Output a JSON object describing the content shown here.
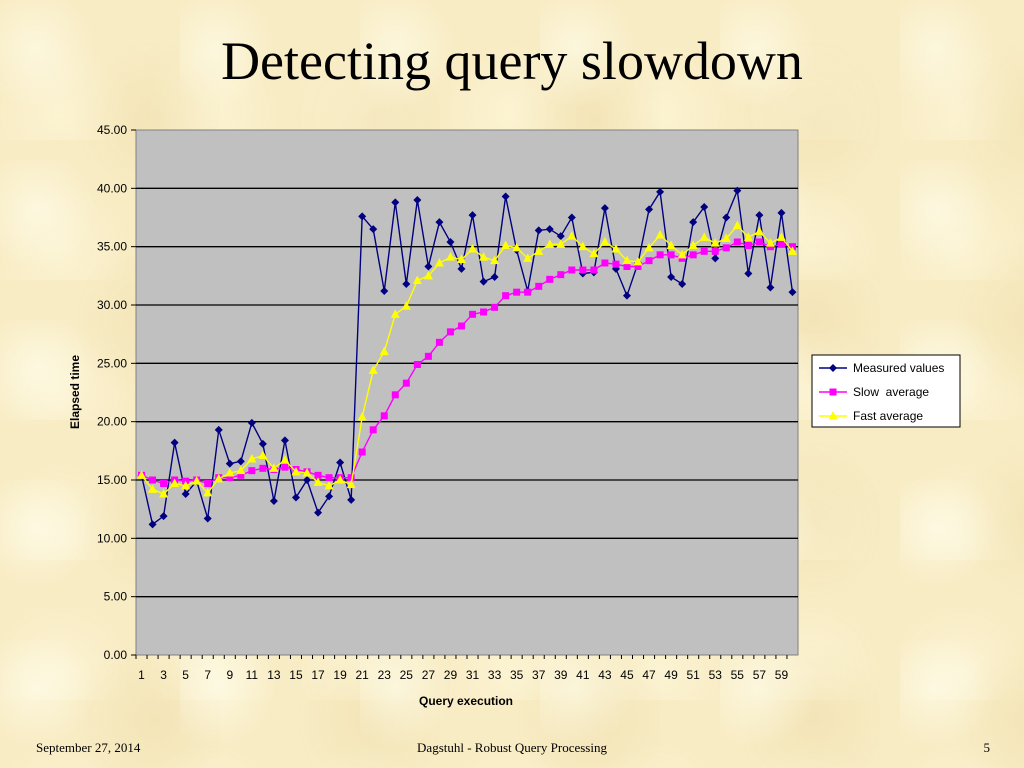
{
  "slide": {
    "title": "Detecting query slowdown",
    "footer_left": "September 27, 2014",
    "footer_center": "Dagstuhl - Robust Query Processing",
    "footer_right": "5"
  },
  "colors": {
    "plot_bg": "#c0c0c0",
    "measured": "#000080",
    "slow": "#ff00ff",
    "fast": "#ffff00"
  },
  "chart_data": {
    "type": "line",
    "title": "",
    "xlabel": "Query execution",
    "ylabel": "Elapsed time",
    "ylim": [
      0,
      45
    ],
    "yticks": [
      0,
      5,
      10,
      15,
      20,
      25,
      30,
      35,
      40,
      45
    ],
    "ytick_labels": [
      "0.00",
      "5.00",
      "10.00",
      "15.00",
      "20.00",
      "25.00",
      "30.00",
      "35.00",
      "40.00",
      "45.00"
    ],
    "x": [
      1,
      2,
      3,
      4,
      5,
      6,
      7,
      8,
      9,
      10,
      11,
      12,
      13,
      14,
      15,
      16,
      17,
      18,
      19,
      20,
      21,
      22,
      23,
      24,
      25,
      26,
      27,
      28,
      29,
      30,
      31,
      32,
      33,
      34,
      35,
      36,
      37,
      38,
      39,
      40,
      41,
      42,
      43,
      44,
      45,
      46,
      47,
      48,
      49,
      50,
      51,
      52,
      53,
      54,
      55,
      56,
      57,
      58,
      59,
      60
    ],
    "xtick_labels": [
      "1",
      "3",
      "5",
      "7",
      "9",
      "11",
      "13",
      "15",
      "17",
      "19",
      "21",
      "23",
      "25",
      "27",
      "29",
      "31",
      "33",
      "35",
      "37",
      "39",
      "41",
      "43",
      "45",
      "47",
      "49",
      "51",
      "53",
      "55",
      "57",
      "59"
    ],
    "grid": true,
    "legend_position": "right",
    "series": [
      {
        "name": "Measured values",
        "marker": "diamond",
        "values": [
          15.4,
          11.2,
          11.9,
          18.2,
          13.8,
          14.9,
          11.7,
          19.3,
          16.4,
          16.6,
          19.9,
          18.1,
          13.2,
          18.4,
          13.5,
          15.0,
          12.2,
          13.6,
          16.5,
          13.3,
          37.6,
          36.5,
          31.2,
          38.8,
          31.8,
          39.0,
          33.3,
          37.1,
          35.4,
          33.1,
          37.7,
          32.0,
          32.4,
          39.3,
          34.7,
          31.2,
          36.4,
          36.5,
          35.9,
          37.5,
          32.7,
          32.8,
          38.3,
          33.1,
          30.8,
          33.6,
          38.2,
          39.7,
          32.4,
          31.8,
          37.1,
          38.4,
          34.0,
          37.5,
          39.8,
          32.7,
          37.7,
          31.5,
          37.9,
          31.1
        ]
      },
      {
        "name": "Slow  average",
        "marker": "square",
        "values": [
          15.4,
          15.0,
          14.7,
          15.0,
          14.9,
          15.0,
          14.7,
          15.2,
          15.2,
          15.4,
          15.8,
          16.0,
          15.9,
          16.1,
          15.9,
          15.7,
          15.4,
          15.2,
          15.2,
          15.2,
          17.4,
          19.3,
          20.5,
          22.3,
          23.3,
          24.9,
          25.6,
          26.8,
          27.7,
          28.2,
          29.2,
          29.4,
          29.8,
          30.8,
          31.1,
          31.1,
          31.6,
          32.2,
          32.6,
          33.0,
          33.0,
          33.0,
          33.6,
          33.5,
          33.3,
          33.3,
          33.8,
          34.3,
          34.3,
          34.0,
          34.3,
          34.6,
          34.6,
          34.9,
          35.4,
          35.1,
          35.4,
          35.0,
          35.2,
          35.0
        ]
      },
      {
        "name": "Fast average",
        "marker": "triangle",
        "values": [
          15.4,
          14.2,
          13.8,
          14.7,
          14.5,
          14.9,
          13.9,
          15.1,
          15.6,
          15.8,
          16.8,
          17.1,
          16.0,
          16.7,
          15.7,
          15.6,
          14.8,
          14.5,
          15.0,
          14.6,
          20.4,
          24.4,
          26.0,
          29.2,
          29.9,
          32.1,
          32.5,
          33.6,
          34.1,
          33.9,
          34.8,
          34.1,
          33.8,
          35.1,
          34.9,
          34.0,
          34.6,
          35.2,
          35.2,
          35.9,
          35.0,
          34.4,
          35.4,
          34.8,
          33.8,
          33.7,
          34.9,
          36.0,
          35.1,
          34.3,
          35.1,
          35.8,
          35.3,
          35.7,
          36.8,
          35.8,
          36.3,
          35.3,
          35.8,
          34.6
        ]
      }
    ]
  }
}
